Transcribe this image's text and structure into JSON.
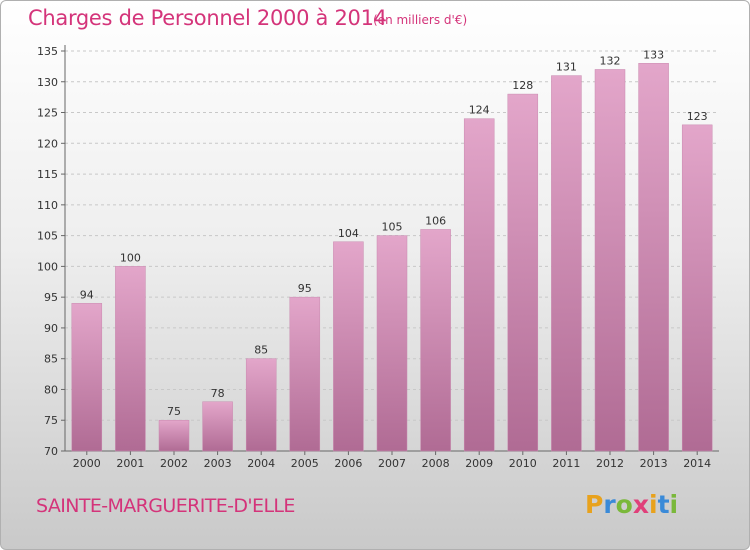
{
  "header": {
    "title": "Charges de Personnel 2000 à 2014",
    "subtitle": "(en milliers d'€)"
  },
  "footer": {
    "town": "SAINTE-MARGUERITE-D'ELLE",
    "brand": "Proxiti"
  },
  "colors": {
    "bar_top": "#e3a6ca",
    "bar_bottom": "#b06b94",
    "text_accent": "#d4347a"
  },
  "chart_data": {
    "type": "bar",
    "title": "Charges de Personnel 2000 à 2014",
    "subtitle": "(en milliers d'€)",
    "categories": [
      "2000",
      "2001",
      "2002",
      "2003",
      "2004",
      "2005",
      "2006",
      "2007",
      "2008",
      "2009",
      "2010",
      "2011",
      "2012",
      "2013",
      "2014"
    ],
    "values": [
      94,
      100,
      75,
      78,
      85,
      95,
      104,
      105,
      106,
      124,
      128,
      131,
      132,
      133,
      123
    ],
    "ylim": [
      70,
      135
    ],
    "yticks": [
      70,
      75,
      80,
      85,
      90,
      95,
      100,
      105,
      110,
      115,
      120,
      125,
      130,
      135
    ],
    "grid": true,
    "legend": "none"
  }
}
